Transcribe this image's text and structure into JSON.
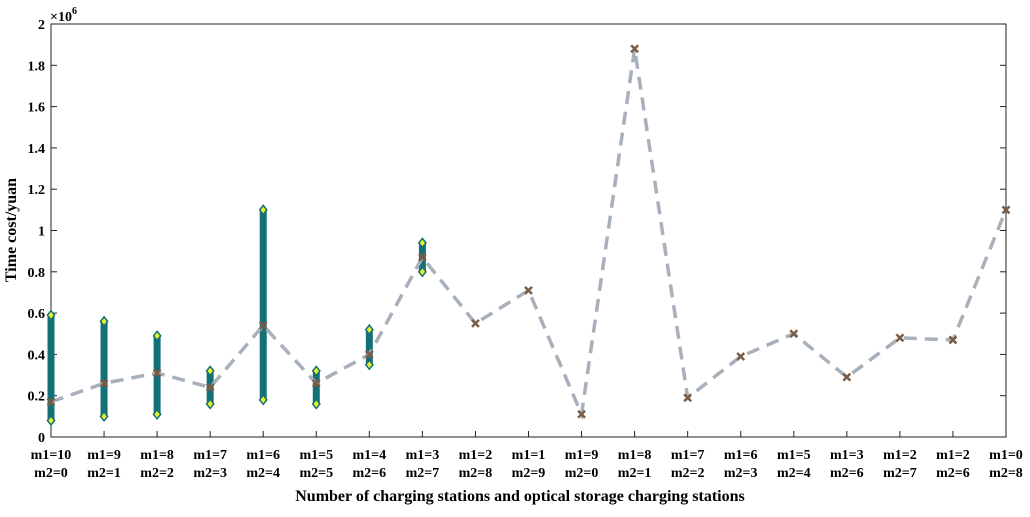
{
  "chart_data": {
    "type": "line",
    "title": "",
    "xlabel": "Number of charging stations and optical storage charging stations",
    "ylabel": "Time cost/yuan",
    "y_multiplier_label": "×10",
    "y_multiplier_exponent": "6",
    "ylim": [
      0,
      2
    ],
    "grid": false,
    "legend": "none",
    "y_ticks": [
      "0",
      "0.2",
      "0.4",
      "0.6",
      "0.8",
      "1",
      "1.2",
      "1.4",
      "1.6",
      "1.8",
      "2"
    ],
    "y_tick_values": [
      0,
      0.2,
      0.4,
      0.6,
      0.8,
      1.0,
      1.2,
      1.4,
      1.6,
      1.8,
      2.0
    ],
    "categories": [
      {
        "line1": "m1=10",
        "line2": "m2=0"
      },
      {
        "line1": "m1=9",
        "line2": "m2=1"
      },
      {
        "line1": "m1=8",
        "line2": "m2=2"
      },
      {
        "line1": "m1=7",
        "line2": "m2=3"
      },
      {
        "line1": "m1=6",
        "line2": "m2=4"
      },
      {
        "line1": "m1=5",
        "line2": "m2=5"
      },
      {
        "line1": "m1=4",
        "line2": "m2=6"
      },
      {
        "line1": "m1=3",
        "line2": "m2=7"
      },
      {
        "line1": "m1=2",
        "line2": "m2=8"
      },
      {
        "line1": "m1=1",
        "line2": "m2=9"
      },
      {
        "line1": "m1=9",
        "line2": "m2=0"
      },
      {
        "line1": "m1=8",
        "line2": "m2=1"
      },
      {
        "line1": "m1=7",
        "line2": "m2=2"
      },
      {
        "line1": "m1=6",
        "line2": "m2=3"
      },
      {
        "line1": "m1=5",
        "line2": "m2=4"
      },
      {
        "line1": "m1=3",
        "line2": "m2=6"
      },
      {
        "line1": "m1=2",
        "line2": "m2=7"
      },
      {
        "line1": "m1=2",
        "line2": "m2=6"
      },
      {
        "line1": "m1=0",
        "line2": "m2=8"
      }
    ],
    "series": [
      {
        "values": [
          0.17,
          0.26,
          0.31,
          0.24,
          0.54,
          0.26,
          0.4,
          0.87,
          0.55,
          0.71,
          0.11,
          1.88,
          0.19,
          0.39,
          0.5,
          0.29,
          0.48,
          0.47,
          1.1
        ],
        "style": "dashed-line-with-x-markers",
        "color": "#a8b0bb",
        "marker_color": "#7a5c44"
      }
    ],
    "ranges": [
      {
        "index": 0,
        "min": 0.08,
        "max": 0.59
      },
      {
        "index": 1,
        "min": 0.1,
        "max": 0.56
      },
      {
        "index": 2,
        "min": 0.11,
        "max": 0.49
      },
      {
        "index": 3,
        "min": 0.16,
        "max": 0.32
      },
      {
        "index": 4,
        "min": 0.18,
        "max": 1.1
      },
      {
        "index": 5,
        "min": 0.16,
        "max": 0.32
      },
      {
        "index": 6,
        "min": 0.35,
        "max": 0.52
      },
      {
        "index": 7,
        "min": 0.8,
        "max": 0.94
      }
    ],
    "range_color": "#137076",
    "range_marker_color": "#e8f22c"
  }
}
